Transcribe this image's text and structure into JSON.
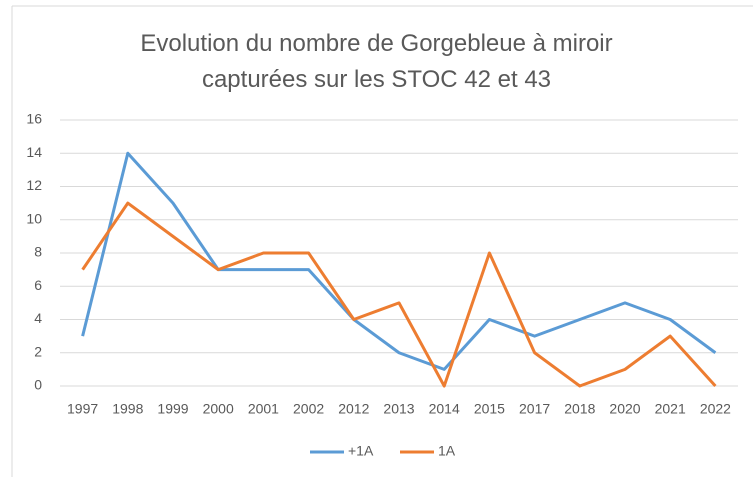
{
  "chart_data": {
    "type": "line",
    "title": "Evolution du nombre de Gorgebleue à miroir capturées sur les STOC 42 et 43",
    "categories": [
      "1997",
      "1998",
      "1999",
      "2000",
      "2001",
      "2002",
      "2012",
      "2013",
      "2014",
      "2015",
      "2017",
      "2018",
      "2020",
      "2021",
      "2022"
    ],
    "series": [
      {
        "name": "+1A",
        "color": "#5b9bd5",
        "values": [
          3,
          14,
          11,
          7,
          7,
          7,
          4,
          2,
          1,
          4,
          3,
          4,
          5,
          4,
          2
        ]
      },
      {
        "name": "1A",
        "color": "#ed7d31",
        "values": [
          7,
          11,
          9,
          7,
          8,
          8,
          4,
          5,
          0,
          8,
          2,
          0,
          1,
          3,
          0
        ]
      }
    ],
    "ylim": [
      0,
      16
    ],
    "yticks": [
      0,
      2,
      4,
      6,
      8,
      10,
      12,
      14,
      16
    ],
    "grid": true,
    "legend": "bottom"
  }
}
